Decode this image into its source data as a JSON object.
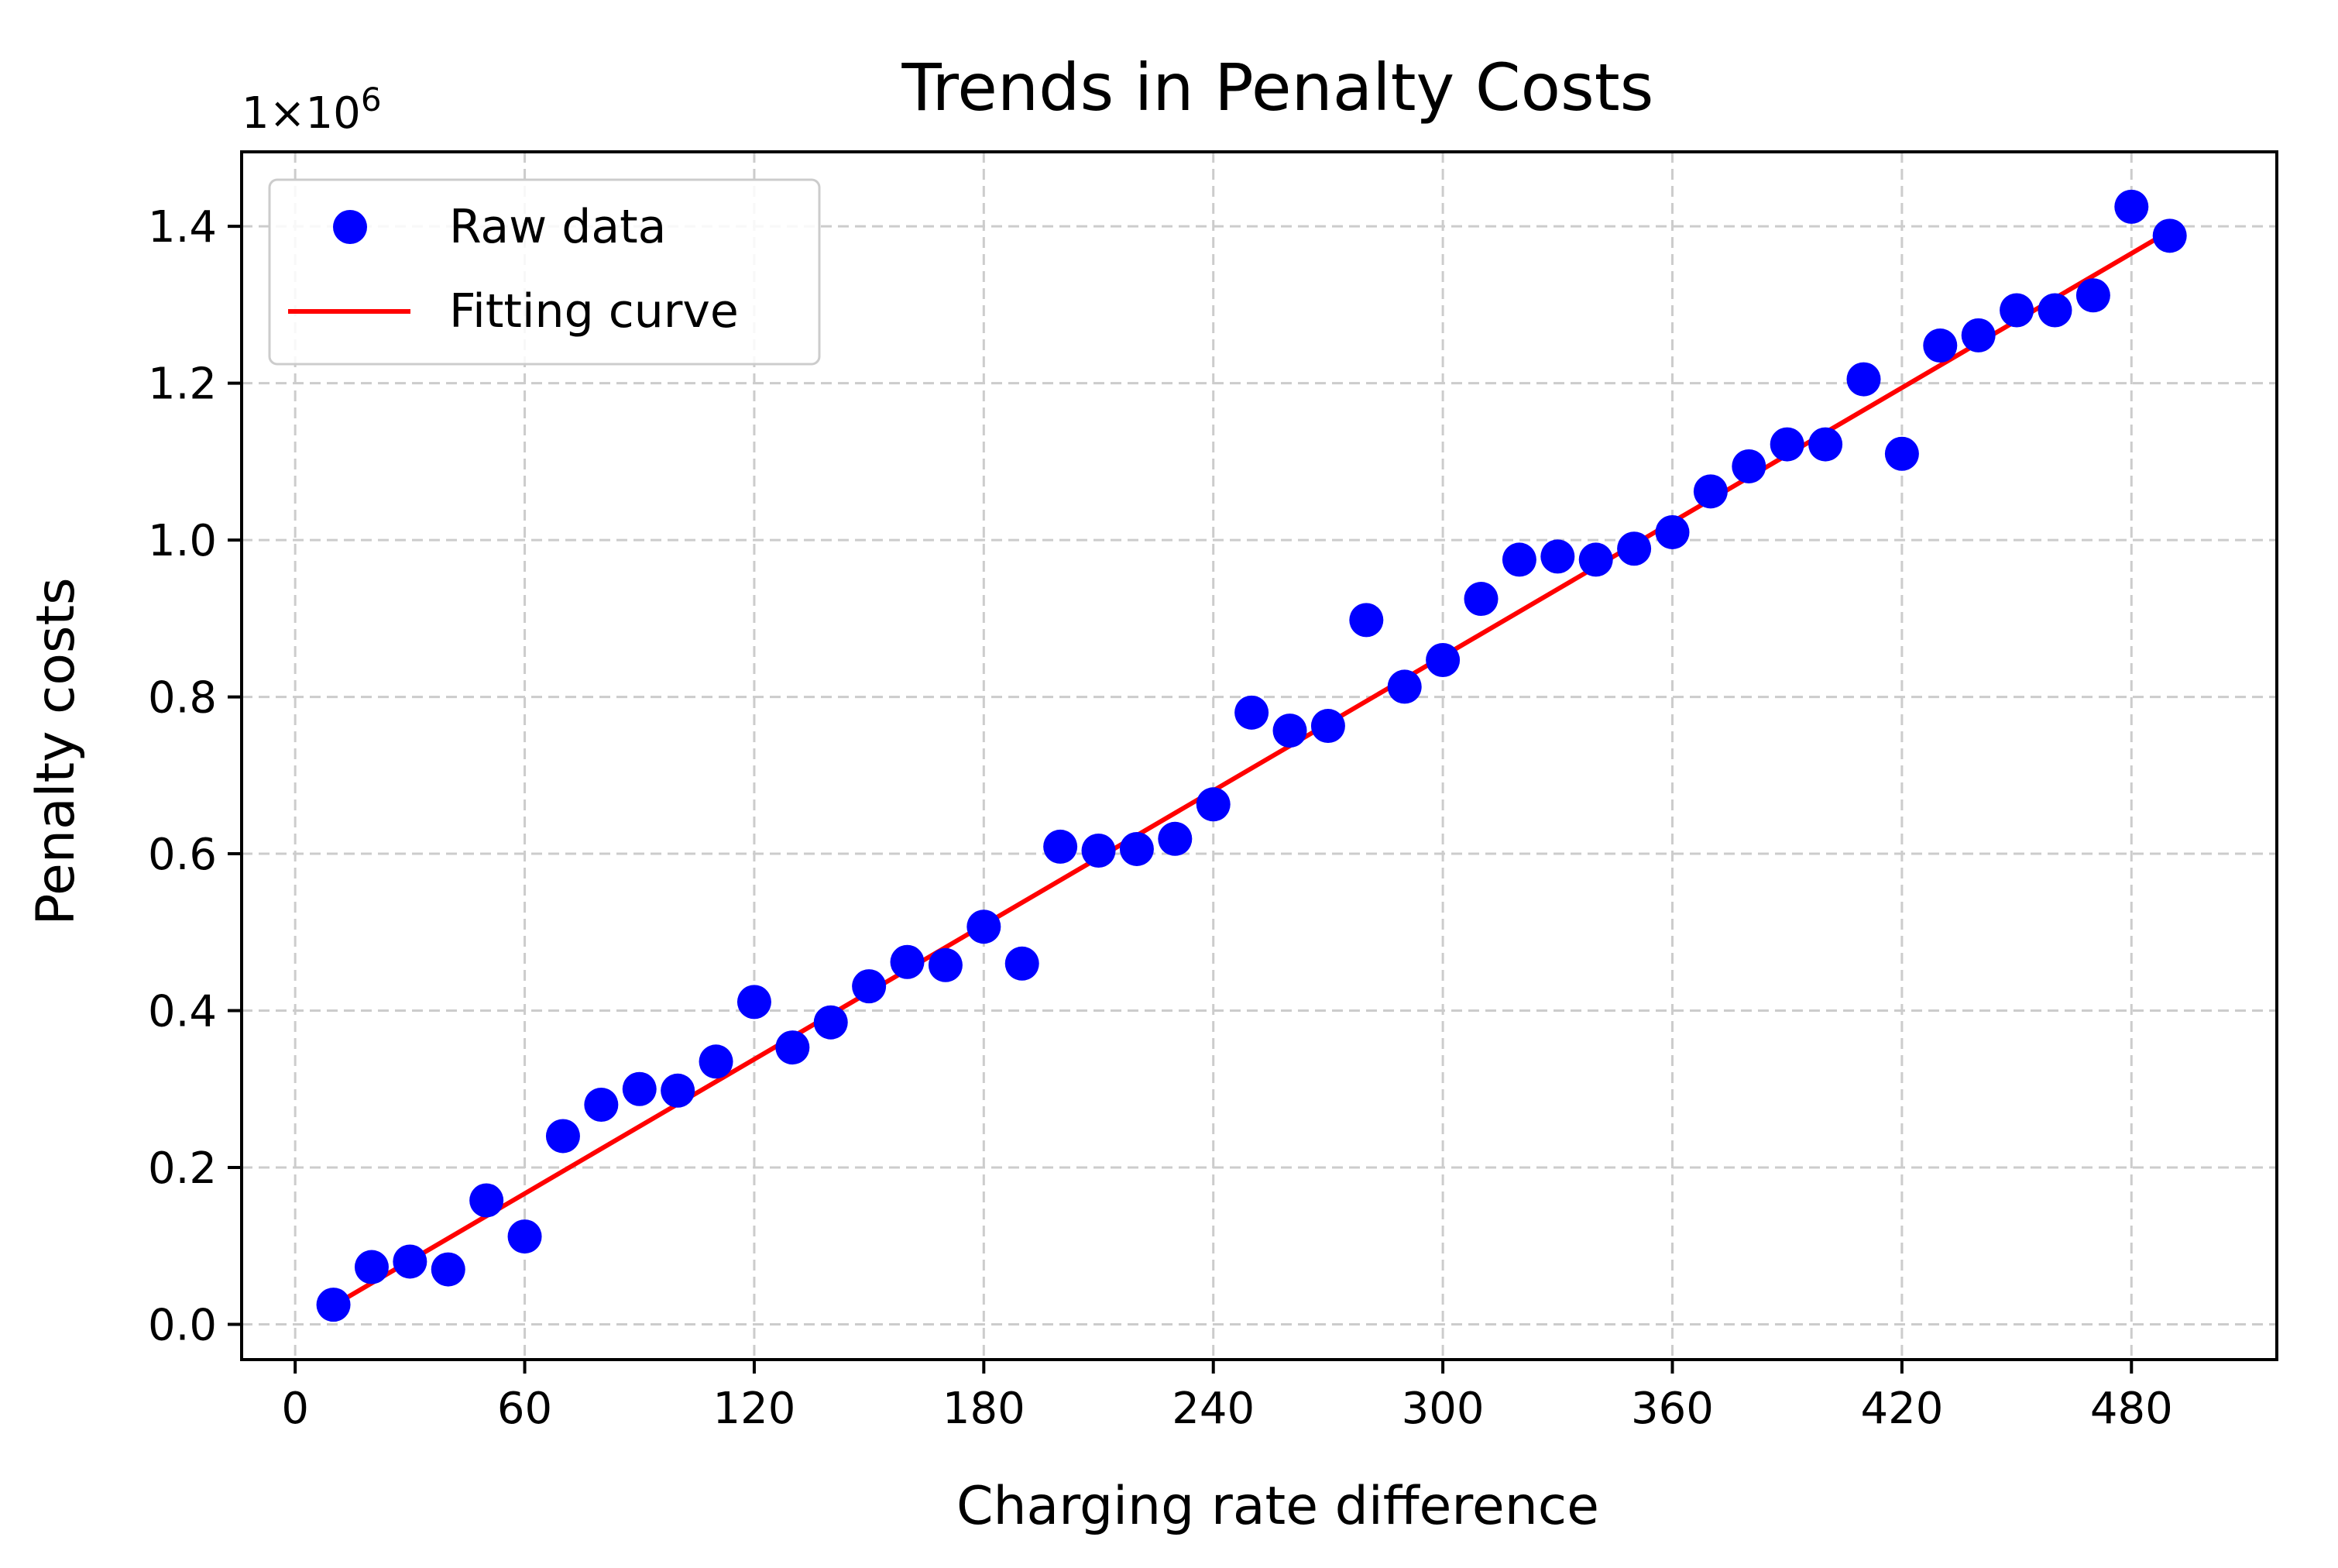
{
  "chart_data": {
    "type": "scatter",
    "title": "Trends in Penalty Costs",
    "xlabel": "Charging rate difference",
    "ylabel": "Penalty costs",
    "y_multiplier_label": "1×10",
    "y_multiplier_exponent": "6",
    "xlim": [
      -14,
      518
    ],
    "ylim": [
      -0.045,
      1.495
    ],
    "x_ticks": [
      0,
      60,
      120,
      180,
      240,
      300,
      360,
      420,
      480
    ],
    "y_ticks": [
      0.0,
      0.2,
      0.4,
      0.6,
      0.8,
      1.0,
      1.2,
      1.4
    ],
    "y_tick_labels": [
      "0.0",
      "0.2",
      "0.4",
      "0.6",
      "0.8",
      "1.0",
      "1.2",
      "1.4"
    ],
    "grid": true,
    "legend_position": "top-left",
    "series": [
      {
        "name": "Raw data",
        "kind": "scatter",
        "color": "#0000ff",
        "x": [
          10,
          20,
          30,
          40,
          50,
          60,
          70,
          80,
          90,
          100,
          110,
          120,
          130,
          140,
          150,
          160,
          170,
          180,
          190,
          200,
          210,
          220,
          230,
          240,
          250,
          260,
          270,
          280,
          290,
          300,
          310,
          320,
          330,
          340,
          350,
          360,
          370,
          380,
          390,
          400,
          410,
          420,
          430,
          440,
          450,
          460,
          470,
          480,
          490
        ],
        "y": [
          0.025,
          0.073,
          0.08,
          0.07,
          0.158,
          0.112,
          0.24,
          0.28,
          0.3,
          0.298,
          0.335,
          0.411,
          0.353,
          0.385,
          0.431,
          0.462,
          0.458,
          0.507,
          0.46,
          0.609,
          0.604,
          0.606,
          0.619,
          0.663,
          0.78,
          0.757,
          0.763,
          0.898,
          0.813,
          0.847,
          0.925,
          0.975,
          0.979,
          0.975,
          0.989,
          1.01,
          1.062,
          1.094,
          1.122,
          1.122,
          1.205,
          1.11,
          1.248,
          1.261,
          1.293,
          1.293,
          1.312,
          1.425,
          1.388
        ]
      },
      {
        "name": "Fitting curve",
        "kind": "line",
        "color": "#ff0000",
        "x": [
          10,
          490
        ],
        "y": [
          0.024,
          1.394
        ]
      }
    ]
  }
}
